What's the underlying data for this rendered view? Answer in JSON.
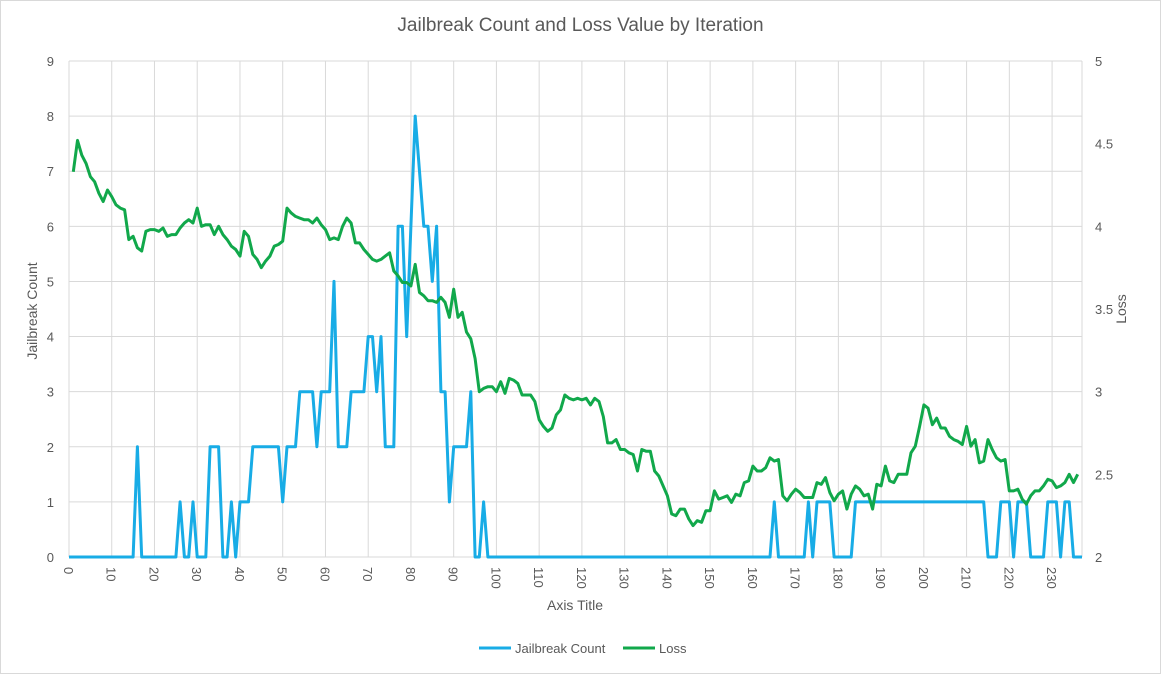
{
  "chart_data": {
    "type": "line",
    "title": "Jailbreak Count and Loss Value by Iteration",
    "xlabel": "Axis Title",
    "ylabel": "Jailbreak Count",
    "y2label": "Loss",
    "xlim": [
      0,
      237
    ],
    "ylim": [
      0,
      9
    ],
    "y2lim": [
      2,
      5
    ],
    "x_ticks": [
      "0",
      "10",
      "20",
      "30",
      "40",
      "50",
      "60",
      "70",
      "80",
      "90",
      "100",
      "110",
      "120",
      "130",
      "140",
      "150",
      "160",
      "170",
      "180",
      "190",
      "200",
      "210",
      "220",
      "230"
    ],
    "y_ticks": [
      "0",
      "1",
      "2",
      "3",
      "4",
      "5",
      "6",
      "7",
      "8",
      "9"
    ],
    "y2_ticks": [
      "2",
      "2.5",
      "3",
      "3.5",
      "4",
      "4.5",
      "5"
    ],
    "grid": true,
    "legend_position": "bottom",
    "series": [
      {
        "name": "Jailbreak Count",
        "axis": "left",
        "color": "#18ace6",
        "points": [
          [
            0,
            0
          ],
          [
            15,
            0
          ],
          [
            16,
            2
          ],
          [
            17,
            0
          ],
          [
            25,
            0
          ],
          [
            26,
            1
          ],
          [
            27,
            0
          ],
          [
            28,
            0
          ],
          [
            29,
            1
          ],
          [
            30,
            0
          ],
          [
            32,
            0
          ],
          [
            33,
            2
          ],
          [
            35,
            2
          ],
          [
            36,
            0
          ],
          [
            37,
            0
          ],
          [
            38,
            1
          ],
          [
            39,
            0
          ],
          [
            40,
            1
          ],
          [
            42,
            1
          ],
          [
            43,
            2
          ],
          [
            49,
            2
          ],
          [
            50,
            1
          ],
          [
            51,
            2
          ],
          [
            53,
            2
          ],
          [
            54,
            3
          ],
          [
            57,
            3
          ],
          [
            58,
            2
          ],
          [
            59,
            3
          ],
          [
            61,
            3
          ],
          [
            62,
            5
          ],
          [
            63,
            2
          ],
          [
            65,
            2
          ],
          [
            66,
            3
          ],
          [
            69,
            3
          ],
          [
            70,
            4
          ],
          [
            71,
            4
          ],
          [
            72,
            3
          ],
          [
            73,
            4
          ],
          [
            74,
            2
          ],
          [
            76,
            2
          ],
          [
            77,
            6
          ],
          [
            78,
            6
          ],
          [
            79,
            4
          ],
          [
            80,
            6
          ],
          [
            81,
            8
          ],
          [
            82,
            7
          ],
          [
            83,
            6
          ],
          [
            84,
            6
          ],
          [
            85,
            5
          ],
          [
            86,
            6
          ],
          [
            87,
            3
          ],
          [
            88,
            3
          ],
          [
            89,
            1
          ],
          [
            90,
            2
          ],
          [
            93,
            2
          ],
          [
            94,
            3
          ],
          [
            95,
            0
          ],
          [
            96,
            0
          ],
          [
            97,
            1
          ],
          [
            98,
            0
          ],
          [
            164,
            0
          ],
          [
            165,
            1
          ],
          [
            166,
            0
          ],
          [
            172,
            0
          ],
          [
            173,
            1
          ],
          [
            174,
            0
          ],
          [
            175,
            1
          ],
          [
            178,
            1
          ],
          [
            179,
            0
          ],
          [
            183,
            0
          ],
          [
            184,
            1
          ],
          [
            214,
            1
          ],
          [
            215,
            0
          ],
          [
            217,
            0
          ],
          [
            218,
            1
          ],
          [
            220,
            1
          ],
          [
            221,
            0
          ],
          [
            222,
            1
          ],
          [
            224,
            1
          ],
          [
            225,
            0
          ],
          [
            228,
            0
          ],
          [
            229,
            1
          ],
          [
            231,
            1
          ],
          [
            232,
            0
          ],
          [
            233,
            1
          ],
          [
            234,
            1
          ],
          [
            235,
            0
          ],
          [
            237,
            0
          ]
        ]
      },
      {
        "name": "Loss",
        "axis": "right",
        "color": "#11a84b",
        "points": [
          [
            1,
            4.33
          ],
          [
            2,
            4.52
          ],
          [
            3,
            4.43
          ],
          [
            4,
            4.38
          ],
          [
            5,
            4.3
          ],
          [
            6,
            4.27
          ],
          [
            7,
            4.2
          ],
          [
            8,
            4.15
          ],
          [
            9,
            4.22
          ],
          [
            10,
            4.18
          ],
          [
            11,
            4.13
          ],
          [
            12,
            4.11
          ],
          [
            13,
            4.1
          ],
          [
            14,
            3.92
          ],
          [
            15,
            3.94
          ],
          [
            16,
            3.87
          ],
          [
            17,
            3.85
          ],
          [
            18,
            3.97
          ],
          [
            19,
            3.98
          ],
          [
            20,
            3.98
          ],
          [
            21,
            3.97
          ],
          [
            22,
            3.99
          ],
          [
            23,
            3.94
          ],
          [
            24,
            3.95
          ],
          [
            25,
            3.95
          ],
          [
            26,
            3.99
          ],
          [
            27,
            4.02
          ],
          [
            28,
            4.04
          ],
          [
            29,
            4.02
          ],
          [
            30,
            4.11
          ],
          [
            31,
            4.0
          ],
          [
            32,
            4.01
          ],
          [
            33,
            4.01
          ],
          [
            34,
            3.95
          ],
          [
            35,
            4.0
          ],
          [
            36,
            3.95
          ],
          [
            37,
            3.92
          ],
          [
            38,
            3.88
          ],
          [
            39,
            3.86
          ],
          [
            40,
            3.82
          ],
          [
            41,
            3.97
          ],
          [
            42,
            3.94
          ],
          [
            43,
            3.83
          ],
          [
            44,
            3.8
          ],
          [
            45,
            3.75
          ],
          [
            46,
            3.79
          ],
          [
            47,
            3.82
          ],
          [
            48,
            3.88
          ],
          [
            49,
            3.89
          ],
          [
            50,
            3.91
          ],
          [
            51,
            4.11
          ],
          [
            52,
            4.08
          ],
          [
            53,
            4.06
          ],
          [
            54,
            4.05
          ],
          [
            55,
            4.04
          ],
          [
            56,
            4.04
          ],
          [
            57,
            4.02
          ],
          [
            58,
            4.05
          ],
          [
            59,
            4.01
          ],
          [
            60,
            3.98
          ],
          [
            61,
            3.92
          ],
          [
            62,
            3.93
          ],
          [
            63,
            3.92
          ],
          [
            64,
            4.0
          ],
          [
            65,
            4.05
          ],
          [
            66,
            4.02
          ],
          [
            67,
            3.9
          ],
          [
            68,
            3.9
          ],
          [
            69,
            3.86
          ],
          [
            70,
            3.83
          ],
          [
            71,
            3.8
          ],
          [
            72,
            3.79
          ],
          [
            73,
            3.8
          ],
          [
            74,
            3.82
          ],
          [
            75,
            3.84
          ],
          [
            76,
            3.73
          ],
          [
            77,
            3.7
          ],
          [
            78,
            3.66
          ],
          [
            79,
            3.66
          ],
          [
            80,
            3.64
          ],
          [
            81,
            3.77
          ],
          [
            82,
            3.6
          ],
          [
            83,
            3.58
          ],
          [
            84,
            3.55
          ],
          [
            85,
            3.55
          ],
          [
            86,
            3.54
          ],
          [
            87,
            3.57
          ],
          [
            88,
            3.54
          ],
          [
            89,
            3.45
          ],
          [
            90,
            3.62
          ],
          [
            91,
            3.45
          ],
          [
            92,
            3.48
          ],
          [
            93,
            3.36
          ],
          [
            94,
            3.32
          ],
          [
            95,
            3.2
          ],
          [
            96,
            3.0
          ],
          [
            97,
            3.02
          ],
          [
            98,
            3.03
          ],
          [
            99,
            3.03
          ],
          [
            100,
            3.0
          ],
          [
            101,
            3.06
          ],
          [
            102,
            2.99
          ],
          [
            103,
            3.08
          ],
          [
            104,
            3.07
          ],
          [
            105,
            3.05
          ],
          [
            106,
            2.98
          ],
          [
            107,
            2.98
          ],
          [
            108,
            2.98
          ],
          [
            109,
            2.94
          ],
          [
            110,
            2.83
          ],
          [
            111,
            2.79
          ],
          [
            112,
            2.76
          ],
          [
            113,
            2.78
          ],
          [
            114,
            2.86
          ],
          [
            115,
            2.89
          ],
          [
            116,
            2.98
          ],
          [
            117,
            2.96
          ],
          [
            118,
            2.95
          ],
          [
            119,
            2.96
          ],
          [
            120,
            2.95
          ],
          [
            121,
            2.96
          ],
          [
            122,
            2.92
          ],
          [
            123,
            2.96
          ],
          [
            124,
            2.94
          ],
          [
            125,
            2.85
          ],
          [
            126,
            2.69
          ],
          [
            127,
            2.69
          ],
          [
            128,
            2.71
          ],
          [
            129,
            2.65
          ],
          [
            130,
            2.65
          ],
          [
            131,
            2.63
          ],
          [
            132,
            2.62
          ],
          [
            133,
            2.52
          ],
          [
            134,
            2.65
          ],
          [
            135,
            2.64
          ],
          [
            136,
            2.64
          ],
          [
            137,
            2.52
          ],
          [
            138,
            2.49
          ],
          [
            139,
            2.43
          ],
          [
            140,
            2.37
          ],
          [
            141,
            2.26
          ],
          [
            142,
            2.25
          ],
          [
            143,
            2.29
          ],
          [
            144,
            2.29
          ],
          [
            145,
            2.23
          ],
          [
            146,
            2.19
          ],
          [
            147,
            2.22
          ],
          [
            148,
            2.21
          ],
          [
            149,
            2.28
          ],
          [
            150,
            2.28
          ],
          [
            151,
            2.4
          ],
          [
            152,
            2.35
          ],
          [
            153,
            2.36
          ],
          [
            154,
            2.37
          ],
          [
            155,
            2.33
          ],
          [
            156,
            2.38
          ],
          [
            157,
            2.37
          ],
          [
            158,
            2.45
          ],
          [
            159,
            2.46
          ],
          [
            160,
            2.55
          ],
          [
            161,
            2.52
          ],
          [
            162,
            2.52
          ],
          [
            163,
            2.54
          ],
          [
            164,
            2.6
          ],
          [
            165,
            2.58
          ],
          [
            166,
            2.59
          ],
          [
            167,
            2.37
          ],
          [
            168,
            2.34
          ],
          [
            169,
            2.38
          ],
          [
            170,
            2.41
          ],
          [
            171,
            2.39
          ],
          [
            172,
            2.36
          ],
          [
            173,
            2.36
          ],
          [
            174,
            2.36
          ],
          [
            175,
            2.45
          ],
          [
            176,
            2.44
          ],
          [
            177,
            2.48
          ],
          [
            178,
            2.39
          ],
          [
            179,
            2.34
          ],
          [
            180,
            2.38
          ],
          [
            181,
            2.4
          ],
          [
            182,
            2.29
          ],
          [
            183,
            2.38
          ],
          [
            184,
            2.43
          ],
          [
            185,
            2.41
          ],
          [
            186,
            2.37
          ],
          [
            187,
            2.38
          ],
          [
            188,
            2.29
          ],
          [
            189,
            2.44
          ],
          [
            190,
            2.43
          ],
          [
            191,
            2.55
          ],
          [
            192,
            2.46
          ],
          [
            193,
            2.45
          ],
          [
            194,
            2.5
          ],
          [
            195,
            2.5
          ],
          [
            196,
            2.5
          ],
          [
            197,
            2.63
          ],
          [
            198,
            2.67
          ],
          [
            199,
            2.79
          ],
          [
            200,
            2.92
          ],
          [
            201,
            2.9
          ],
          [
            202,
            2.8
          ],
          [
            203,
            2.84
          ],
          [
            204,
            2.78
          ],
          [
            205,
            2.78
          ],
          [
            206,
            2.73
          ],
          [
            207,
            2.71
          ],
          [
            208,
            2.7
          ],
          [
            209,
            2.68
          ],
          [
            210,
            2.79
          ],
          [
            211,
            2.67
          ],
          [
            212,
            2.71
          ],
          [
            213,
            2.57
          ],
          [
            214,
            2.58
          ],
          [
            215,
            2.71
          ],
          [
            216,
            2.65
          ],
          [
            217,
            2.6
          ],
          [
            218,
            2.58
          ],
          [
            219,
            2.59
          ],
          [
            220,
            2.4
          ],
          [
            221,
            2.4
          ],
          [
            222,
            2.41
          ],
          [
            223,
            2.35
          ],
          [
            224,
            2.32
          ],
          [
            225,
            2.37
          ],
          [
            226,
            2.4
          ],
          [
            227,
            2.4
          ],
          [
            228,
            2.43
          ],
          [
            229,
            2.47
          ],
          [
            230,
            2.46
          ],
          [
            231,
            2.42
          ],
          [
            232,
            2.43
          ],
          [
            233,
            2.45
          ],
          [
            234,
            2.5
          ],
          [
            235,
            2.45
          ],
          [
            236,
            2.5
          ]
        ]
      }
    ]
  }
}
